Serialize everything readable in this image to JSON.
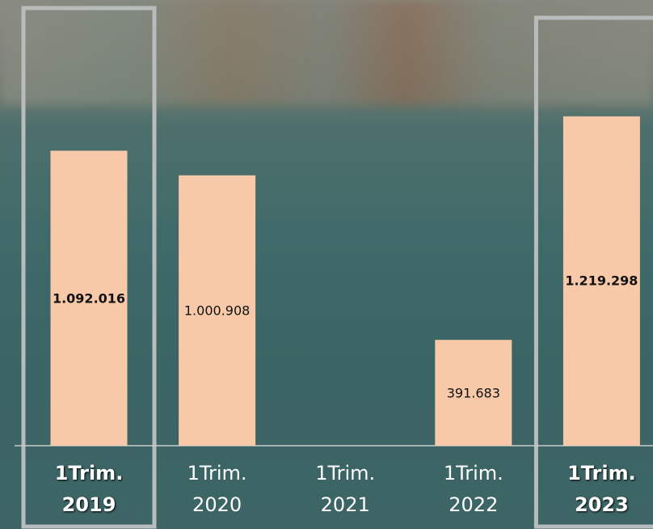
{
  "chart_data": {
    "type": "bar",
    "categories": [
      "1Trim.\n2019",
      "1Trim.\n2020",
      "1Trim.\n2021",
      "1Trim.\n2022",
      "1Trim.\n2023"
    ],
    "values": [
      1092016,
      1000908,
      null,
      391683,
      1219298
    ],
    "value_labels": [
      "1.092.016",
      "1.000.908",
      null,
      "391.683",
      "1.219.298"
    ],
    "highlight": [
      true,
      false,
      false,
      false,
      true
    ],
    "color": "#f8c9a8",
    "ylim": [
      0,
      1650000
    ]
  }
}
